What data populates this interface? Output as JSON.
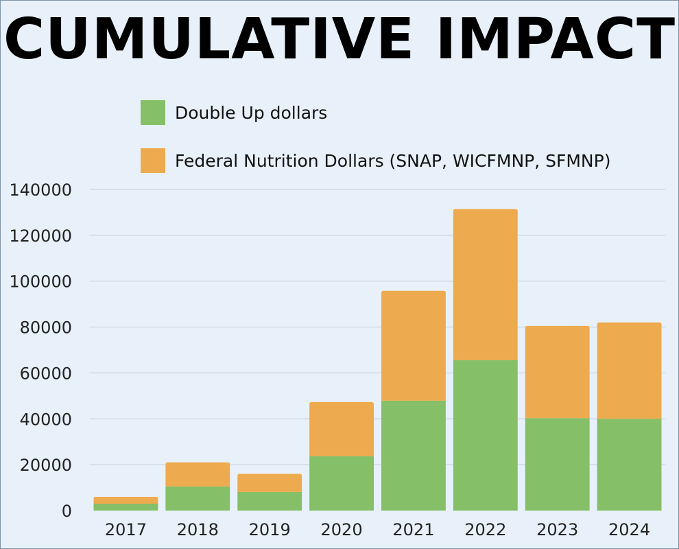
{
  "title": "CUMULATIVE IMPACT",
  "colors": {
    "background": "#e8f1f9",
    "double_up": "#85bf67",
    "federal": "#eeaa4e",
    "grid": "#c2ccd6"
  },
  "chart_data": {
    "type": "bar",
    "stacked": true,
    "categories": [
      "2017",
      "2018",
      "2019",
      "2020",
      "2021",
      "2022",
      "2023",
      "2024"
    ],
    "series": [
      {
        "name": "Double Up dollars",
        "color": "#85bf67",
        "values": [
          3000,
          10500,
          8100,
          23700,
          47900,
          65600,
          40300,
          40000
        ]
      },
      {
        "name": "Federal Nutrition Dollars (SNAP, WICFMNP, SFMNP)",
        "color": "#eeaa4e",
        "values": [
          3000,
          10500,
          7900,
          23600,
          47900,
          65800,
          40200,
          42000
        ]
      }
    ],
    "ylim": [
      0,
      140000
    ],
    "yticks": [
      "0",
      "20000",
      "40000",
      "60000",
      "80000",
      "100000",
      "120000",
      "140000"
    ],
    "grid": true,
    "legend_position": "top"
  }
}
